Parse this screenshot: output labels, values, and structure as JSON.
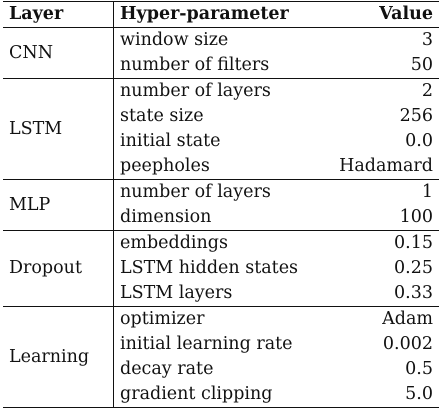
{
  "header": {
    "layer": "Layer",
    "param": "Hyper-parameter",
    "value": "Value"
  },
  "groups": [
    {
      "layer": "CNN",
      "rows": [
        {
          "param": "window size",
          "value": "3"
        },
        {
          "param": "number of filters",
          "value": "50"
        }
      ]
    },
    {
      "layer": "LSTM",
      "rows": [
        {
          "param": "number of layers",
          "value": "2"
        },
        {
          "param": "state size",
          "value": "256"
        },
        {
          "param": "initial state",
          "value": "0.0"
        },
        {
          "param": "peepholes",
          "value": "Hadamard"
        }
      ]
    },
    {
      "layer": "MLP",
      "rows": [
        {
          "param": "number of layers",
          "value": "1"
        },
        {
          "param": "dimension",
          "value": "100"
        }
      ]
    },
    {
      "layer": "Dropout",
      "rows": [
        {
          "param": "embeddings",
          "value": "0.15"
        },
        {
          "param": "LSTM hidden states",
          "value": "0.25"
        },
        {
          "param": "LSTM layers",
          "value": "0.33"
        }
      ]
    },
    {
      "layer": "Learning",
      "rows": [
        {
          "param": "optimizer",
          "value": "Adam"
        },
        {
          "param": "initial learning rate",
          "value": "0.002"
        },
        {
          "param": "decay rate",
          "value": "0.5"
        },
        {
          "param": "gradient clipping",
          "value": "5.0"
        }
      ]
    }
  ]
}
